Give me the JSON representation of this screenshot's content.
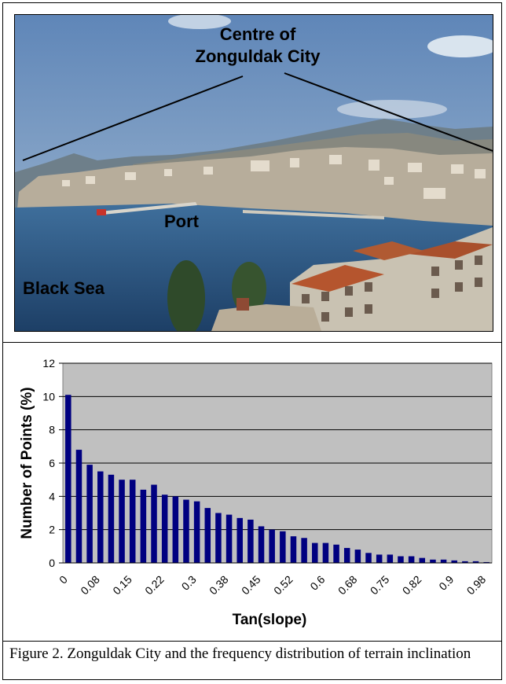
{
  "photo": {
    "labels": {
      "centre_line1": "Centre of",
      "centre_line2": "Zonguldak City",
      "port": "Port",
      "sea": "Black Sea"
    }
  },
  "chart_data": {
    "type": "bar",
    "xlabel": "Tan(slope)",
    "ylabel": "Number of Points (%)",
    "ylim": [
      0,
      12
    ],
    "yticks": [
      "0",
      "2",
      "4",
      "6",
      "8",
      "10",
      "12"
    ],
    "xticklabels": [
      "0",
      "0.08",
      "0.15",
      "0.22",
      "0.3",
      "0.38",
      "0.45",
      "0.52",
      "0.6",
      "0.68",
      "0.75",
      "0.82",
      "0.9",
      "0.98"
    ],
    "grid": true,
    "bar_color": "#000080",
    "plot_background": "#c0c0c0",
    "values": [
      10.1,
      6.8,
      5.9,
      5.5,
      5.3,
      5.0,
      5.0,
      4.4,
      4.7,
      4.1,
      4.0,
      3.8,
      3.7,
      3.3,
      3.0,
      2.9,
      2.7,
      2.6,
      2.2,
      2.0,
      1.9,
      1.6,
      1.5,
      1.2,
      1.2,
      1.1,
      0.9,
      0.8,
      0.6,
      0.5,
      0.5,
      0.4,
      0.4,
      0.3,
      0.2,
      0.2,
      0.15,
      0.1,
      0.1,
      0.05
    ]
  },
  "caption": "Figure 2. Zonguldak City and the frequency distribution of terrain inclination"
}
